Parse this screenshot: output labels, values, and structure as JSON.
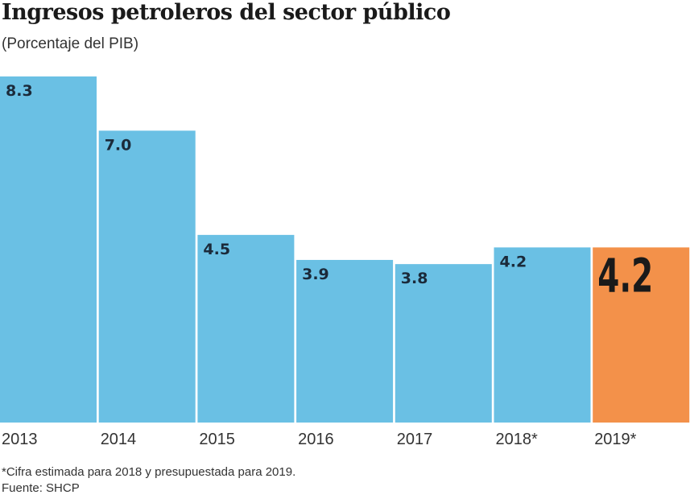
{
  "chart_data": {
    "type": "bar",
    "title": "Ingresos petroleros del sector público",
    "subtitle": "(Porcentaje del PIB)",
    "xlabel": "",
    "ylabel": "",
    "categories": [
      "2013",
      "2014",
      "2015",
      "2016",
      "2017",
      "2018*",
      "2019*"
    ],
    "values": [
      8.3,
      7.0,
      4.5,
      3.9,
      3.8,
      4.2,
      4.2
    ],
    "value_labels": [
      "8.3",
      "7.0",
      "4.5",
      "3.9",
      "3.8",
      "4.2",
      "4.2"
    ],
    "highlight_index": 6,
    "colors": {
      "bar": "#6ac0e4",
      "highlight": "#f3914a"
    },
    "ylim": [
      0,
      8.3
    ],
    "grid": false,
    "legend": "none",
    "footnote": "*Cifra estimada para 2018 y presupuestada para 2019.",
    "source": "Fuente: SHCP"
  }
}
